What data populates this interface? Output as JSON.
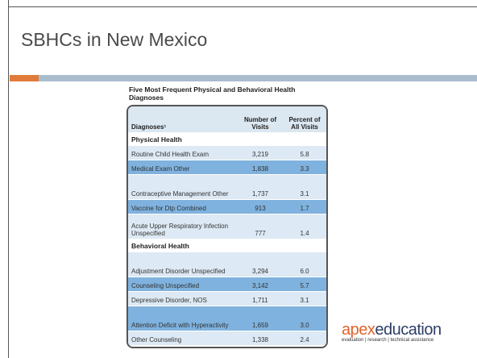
{
  "header": {
    "title": "SBHCs in New Mexico"
  },
  "table": {
    "title": "Five Most Frequent Physical and Behavioral Health Diagnoses",
    "columns": [
      "Diagnoses¹",
      "Number of Visits",
      "Percent of All Visits"
    ],
    "sections": [
      {
        "name": "Physical Health",
        "rows": [
          [
            "Routine Child Health Exam",
            "3,219",
            "5.8"
          ],
          [
            "Medical Exam Other",
            "1,838",
            "3.3"
          ],
          [
            "Contraceptive Management Other",
            "1,737",
            "3.1"
          ],
          [
            "Vaccine for Dtp Combined",
            "913",
            "1.7"
          ],
          [
            "Acute Upper Respiratory Infection Unspecified",
            "777",
            "1.4"
          ]
        ]
      },
      {
        "name": "Behavioral Health",
        "rows": [
          [
            "Adjustment Disorder Unspecified",
            "3,294",
            "6.0"
          ],
          [
            "Counseling Unspecified",
            "3,142",
            "5.7"
          ],
          [
            "Depressive Disorder, NOS",
            "1,711",
            "3.1"
          ],
          [
            "Attention Deficit with Hyperactivity",
            "1,659",
            "3.0"
          ],
          [
            "Other Counseling",
            "1,338",
            "2.4"
          ]
        ]
      }
    ]
  },
  "logo": {
    "brand": [
      "apex",
      "education"
    ],
    "tagline": "evaluation | research | technical assistance"
  }
}
